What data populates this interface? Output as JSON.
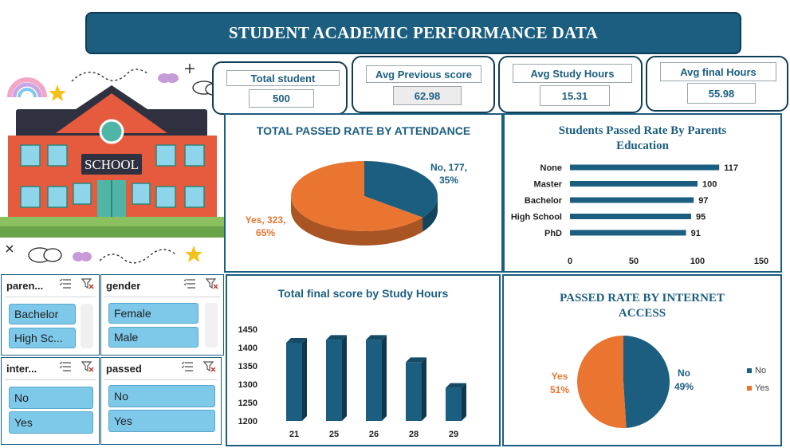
{
  "title": "STUDENT ACADEMIC PERFORMANCE  DATA",
  "illustration": {
    "sign": "SCHOOL"
  },
  "kpis": [
    {
      "label": "Total  student",
      "value": "500"
    },
    {
      "label": "Avg Previous score",
      "value": "62.98"
    },
    {
      "label": "Avg Study Hours",
      "value": "15.31"
    },
    {
      "label": "Avg final Hours",
      "value": "55.98"
    }
  ],
  "slicers": {
    "parents": {
      "header": "paren...",
      "items": [
        "Bachelor",
        "High Sc..."
      ]
    },
    "gender": {
      "header": "gender",
      "items": [
        "Female",
        "Male"
      ]
    },
    "internet": {
      "header": "inter...",
      "items": [
        "No",
        "Yes"
      ]
    },
    "passed": {
      "header": "passed",
      "items": [
        "No",
        "Yes"
      ]
    }
  },
  "colors": {
    "primary": "#1b5e80",
    "orange": "#e97530",
    "slicer": "#7ec8ea"
  },
  "chart_data": [
    {
      "type": "pie",
      "title": "TOTAL PASSED RATE BY ATTENDANCE",
      "categories": [
        "No",
        "Yes"
      ],
      "values": [
        177,
        323
      ],
      "labels": [
        {
          "name": "No, 177,",
          "pct": "35%"
        },
        {
          "name": "Yes, 323,",
          "pct": "65%"
        }
      ],
      "colors": [
        "#1b5e80",
        "#e97530"
      ],
      "style": "3d"
    },
    {
      "type": "bar",
      "orientation": "horizontal",
      "title_lines": [
        "Students Passed Rate By Parents",
        "Education"
      ],
      "categories": [
        "None",
        "Master",
        "Bachelor",
        "High School",
        "PhD"
      ],
      "values": [
        117,
        100,
        97,
        95,
        91
      ],
      "xlim": [
        0,
        150
      ],
      "xticks": [
        "0",
        "50",
        "100",
        "150"
      ],
      "color": "#1b5e80"
    },
    {
      "type": "bar",
      "title": "Total final score by Study Hours",
      "categories": [
        "21",
        "25",
        "26",
        "28",
        "29"
      ],
      "values": [
        1413,
        1421,
        1421,
        1360,
        1290
      ],
      "ylim": [
        1200,
        1450
      ],
      "yticks": [
        "1450",
        "1400",
        "1350",
        "1300",
        "1250",
        "1200"
      ],
      "color": "#1b5e80"
    },
    {
      "type": "pie",
      "title_lines": [
        "PASSED RATE BY INTERNET",
        "ACCESS"
      ],
      "categories": [
        "No",
        "Yes"
      ],
      "values": [
        49,
        51
      ],
      "labels": [
        {
          "name": "No",
          "pct": "49%"
        },
        {
          "name": "Yes",
          "pct": "51%"
        }
      ],
      "legend": [
        "No",
        "Yes"
      ],
      "legend_position": "right",
      "colors": [
        "#1b5e80",
        "#e97530"
      ]
    }
  ]
}
